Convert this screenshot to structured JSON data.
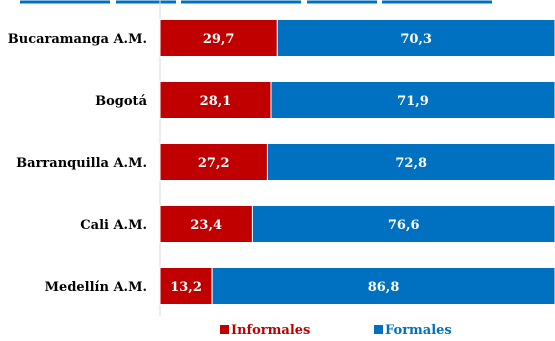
{
  "chart_data": {
    "type": "bar",
    "orientation": "horizontal",
    "stacked": true,
    "categories": [
      "Bucaramanga A.M.",
      "Bogotá",
      "Barranquilla A.M.",
      "Cali A.M.",
      "Medellín A.M."
    ],
    "series": [
      {
        "name": "Informales",
        "values": [
          "29,7",
          "28,1",
          "27,2",
          "23,4",
          "13,2"
        ],
        "color": "#c00000"
      },
      {
        "name": "Formales",
        "values": [
          "70,3",
          "71,9",
          "72,8",
          "76,6",
          "86,8"
        ],
        "color": "#0070c0"
      }
    ],
    "xlim": [
      0,
      100
    ],
    "grid": false,
    "legend_position": "bottom",
    "title_color": "#0070c0"
  }
}
